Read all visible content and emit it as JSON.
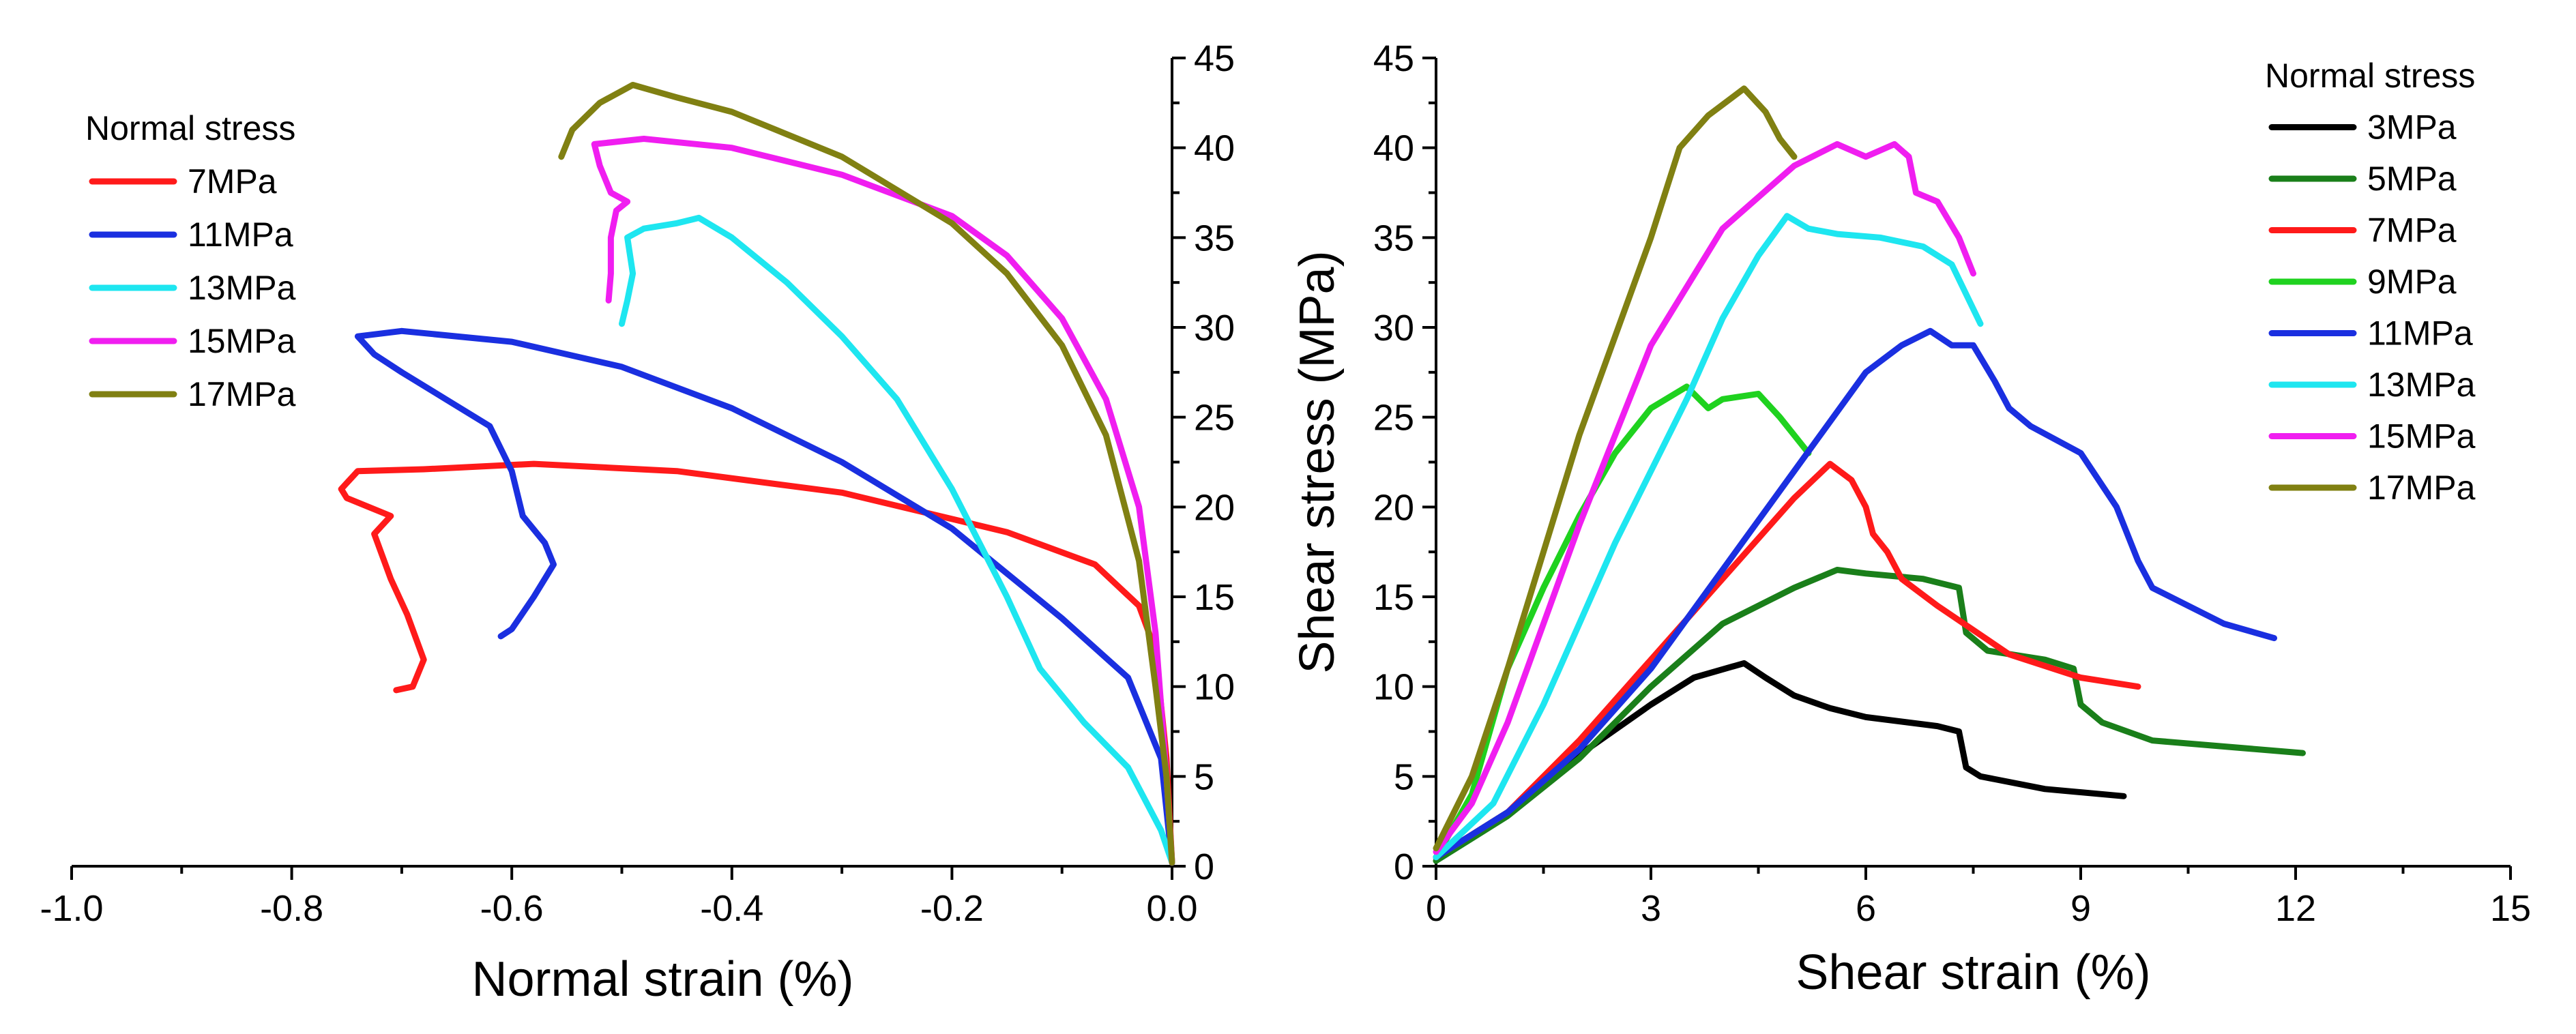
{
  "colors": {
    "3MPa": "#000000",
    "5MPa": "#1a7f1a",
    "7MPa": "#ff1a1a",
    "9MPa": "#1fd21f",
    "11MPa": "#1a2fe0",
    "13MPa": "#1ee6f0",
    "15MPa": "#f01ef0",
    "17MPa": "#808012"
  },
  "chart_data": [
    {
      "type": "line",
      "id": "left",
      "title": "",
      "xlabel": "Normal strain (%)",
      "ylabel": "",
      "xlim": [
        -1.0,
        0.0
      ],
      "ylim": [
        0,
        45
      ],
      "xticks": [
        -1.0,
        -0.8,
        -0.6,
        -0.4,
        -0.2,
        0.0
      ],
      "xtick_labels": [
        "-1.0",
        "-0.8",
        "-0.6",
        "-0.4",
        "-0.2",
        "0.0"
      ],
      "yticks": [
        0,
        5,
        10,
        15,
        20,
        25,
        30,
        35,
        40,
        45
      ],
      "ytick_labels": [
        "0",
        "5",
        "10",
        "15",
        "20",
        "25",
        "30",
        "35",
        "40",
        "45"
      ],
      "y_axis_side": "right",
      "grid": false,
      "legend": {
        "title": "Normal stress",
        "position": "top-left",
        "entries": [
          "7MPa",
          "11MPa",
          "13MPa",
          "15MPa",
          "17MPa"
        ]
      },
      "series": [
        {
          "name": "7MPa",
          "points": [
            [
              0.0,
              0.2
            ],
            [
              -0.005,
              6
            ],
            [
              -0.015,
              12
            ],
            [
              -0.03,
              14.5
            ],
            [
              -0.07,
              16.8
            ],
            [
              -0.15,
              18.6
            ],
            [
              -0.3,
              20.8
            ],
            [
              -0.45,
              22.0
            ],
            [
              -0.58,
              22.4
            ],
            [
              -0.68,
              22.1
            ],
            [
              -0.74,
              22.0
            ],
            [
              -0.755,
              21.0
            ],
            [
              -0.75,
              20.5
            ],
            [
              -0.73,
              20.0
            ],
            [
              -0.71,
              19.5
            ],
            [
              -0.725,
              18.5
            ],
            [
              -0.71,
              16.0
            ],
            [
              -0.695,
              14.0
            ],
            [
              -0.68,
              11.5
            ],
            [
              -0.69,
              10.0
            ],
            [
              -0.705,
              9.8
            ]
          ]
        },
        {
          "name": "11MPa",
          "points": [
            [
              0.0,
              0.2
            ],
            [
              -0.01,
              6
            ],
            [
              -0.04,
              10.5
            ],
            [
              -0.1,
              13.8
            ],
            [
              -0.15,
              16.3
            ],
            [
              -0.2,
              18.8
            ],
            [
              -0.3,
              22.5
            ],
            [
              -0.4,
              25.5
            ],
            [
              -0.5,
              27.8
            ],
            [
              -0.6,
              29.2
            ],
            [
              -0.7,
              29.8
            ],
            [
              -0.74,
              29.5
            ],
            [
              -0.725,
              28.5
            ],
            [
              -0.7,
              27.5
            ],
            [
              -0.66,
              26.0
            ],
            [
              -0.62,
              24.5
            ],
            [
              -0.6,
              22.0
            ],
            [
              -0.59,
              19.5
            ],
            [
              -0.57,
              18.0
            ],
            [
              -0.562,
              16.8
            ],
            [
              -0.58,
              15.0
            ],
            [
              -0.6,
              13.2
            ],
            [
              -0.61,
              12.8
            ]
          ]
        },
        {
          "name": "13MPa",
          "points": [
            [
              0.0,
              0.2
            ],
            [
              -0.01,
              2
            ],
            [
              -0.04,
              5.5
            ],
            [
              -0.08,
              8.0
            ],
            [
              -0.12,
              11.0
            ],
            [
              -0.15,
              15.0
            ],
            [
              -0.2,
              21.0
            ],
            [
              -0.25,
              26.0
            ],
            [
              -0.3,
              29.5
            ],
            [
              -0.35,
              32.5
            ],
            [
              -0.4,
              35.0
            ],
            [
              -0.43,
              36.1
            ],
            [
              -0.45,
              35.8
            ],
            [
              -0.48,
              35.5
            ],
            [
              -0.495,
              35.0
            ],
            [
              -0.49,
              33.0
            ],
            [
              -0.495,
              31.5
            ],
            [
              -0.5,
              30.2
            ]
          ]
        },
        {
          "name": "15MPa",
          "points": [
            [
              0.0,
              0.2
            ],
            [
              -0.005,
              5
            ],
            [
              -0.015,
              13
            ],
            [
              -0.03,
              20
            ],
            [
              -0.06,
              26
            ],
            [
              -0.1,
              30.5
            ],
            [
              -0.15,
              34
            ],
            [
              -0.2,
              36.2
            ],
            [
              -0.3,
              38.5
            ],
            [
              -0.4,
              40.0
            ],
            [
              -0.48,
              40.5
            ],
            [
              -0.525,
              40.2
            ],
            [
              -0.52,
              39.0
            ],
            [
              -0.51,
              37.5
            ],
            [
              -0.495,
              37.0
            ],
            [
              -0.505,
              36.5
            ],
            [
              -0.51,
              35.0
            ],
            [
              -0.51,
              33.0
            ],
            [
              -0.512,
              31.5
            ]
          ]
        },
        {
          "name": "17MPa",
          "points": [
            [
              0.0,
              0.2
            ],
            [
              -0.005,
              5
            ],
            [
              -0.015,
              10
            ],
            [
              -0.03,
              17
            ],
            [
              -0.06,
              24
            ],
            [
              -0.1,
              29
            ],
            [
              -0.15,
              33
            ],
            [
              -0.2,
              35.8
            ],
            [
              -0.3,
              39.5
            ],
            [
              -0.4,
              42.0
            ],
            [
              -0.45,
              42.8
            ],
            [
              -0.49,
              43.5
            ],
            [
              -0.52,
              42.5
            ],
            [
              -0.545,
              41.0
            ],
            [
              -0.555,
              39.5
            ]
          ]
        }
      ]
    },
    {
      "type": "line",
      "id": "right",
      "title": "",
      "xlabel": "Shear strain (%)",
      "ylabel": "Shear stress (MPa)",
      "xlim": [
        0,
        15
      ],
      "ylim": [
        0,
        45
      ],
      "xticks": [
        0,
        3,
        6,
        9,
        12,
        15
      ],
      "xtick_labels": [
        "0",
        "3",
        "6",
        "9",
        "12",
        "15"
      ],
      "yticks": [
        0,
        5,
        10,
        15,
        20,
        25,
        30,
        35,
        40,
        45
      ],
      "ytick_labels": [
        "0",
        "5",
        "10",
        "15",
        "20",
        "25",
        "30",
        "35",
        "40",
        "45"
      ],
      "y_axis_side": "left",
      "grid": false,
      "legend": {
        "title": "Normal stress",
        "position": "top-right",
        "entries": [
          "3MPa",
          "5MPa",
          "7MPa",
          "9MPa",
          "11MPa",
          "13MPa",
          "15MPa",
          "17MPa"
        ]
      },
      "series": [
        {
          "name": "3MPa",
          "points": [
            [
              0.0,
              0.5
            ],
            [
              1.0,
              3.0
            ],
            [
              2.0,
              6.2
            ],
            [
              3.0,
              9.0
            ],
            [
              3.6,
              10.5
            ],
            [
              4.3,
              11.3
            ],
            [
              4.6,
              10.5
            ],
            [
              5.0,
              9.5
            ],
            [
              5.5,
              8.8
            ],
            [
              6.0,
              8.3
            ],
            [
              7.0,
              7.8
            ],
            [
              7.3,
              7.5
            ],
            [
              7.4,
              5.5
            ],
            [
              7.6,
              5.0
            ],
            [
              8.5,
              4.3
            ],
            [
              9.6,
              3.9
            ]
          ]
        },
        {
          "name": "5MPa",
          "points": [
            [
              0.0,
              0.3
            ],
            [
              1.0,
              2.8
            ],
            [
              2.0,
              6.0
            ],
            [
              3.0,
              10.0
            ],
            [
              4.0,
              13.5
            ],
            [
              5.0,
              15.5
            ],
            [
              5.6,
              16.5
            ],
            [
              6.0,
              16.3
            ],
            [
              6.8,
              16.0
            ],
            [
              7.3,
              15.5
            ],
            [
              7.4,
              13.0
            ],
            [
              7.7,
              12.0
            ],
            [
              8.5,
              11.5
            ],
            [
              8.9,
              11.0
            ],
            [
              9.0,
              9.0
            ],
            [
              9.3,
              8.0
            ],
            [
              10.0,
              7.0
            ],
            [
              12.1,
              6.3
            ]
          ]
        },
        {
          "name": "7MPa",
          "points": [
            [
              0.0,
              0.5
            ],
            [
              1.0,
              3.0
            ],
            [
              2.0,
              7.0
            ],
            [
              3.0,
              11.5
            ],
            [
              4.0,
              16.0
            ],
            [
              5.0,
              20.5
            ],
            [
              5.5,
              22.4
            ],
            [
              5.8,
              21.5
            ],
            [
              6.0,
              20.0
            ],
            [
              6.1,
              18.5
            ],
            [
              6.3,
              17.5
            ],
            [
              6.5,
              16.0
            ],
            [
              7.0,
              14.5
            ],
            [
              8.0,
              11.8
            ],
            [
              9.0,
              10.5
            ],
            [
              9.8,
              10.0
            ]
          ]
        },
        {
          "name": "9MPa",
          "points": [
            [
              0.0,
              0.5
            ],
            [
              0.5,
              4.0
            ],
            [
              1.0,
              11.0
            ],
            [
              1.5,
              15.5
            ],
            [
              2.0,
              19.5
            ],
            [
              2.5,
              23.0
            ],
            [
              3.0,
              25.5
            ],
            [
              3.5,
              26.7
            ],
            [
              3.8,
              25.5
            ],
            [
              4.0,
              26.0
            ],
            [
              4.5,
              26.3
            ],
            [
              4.8,
              25.0
            ],
            [
              5.2,
              23.0
            ]
          ]
        },
        {
          "name": "11MPa",
          "points": [
            [
              0.0,
              0.5
            ],
            [
              1.0,
              3.0
            ],
            [
              2.0,
              6.5
            ],
            [
              3.0,
              11.0
            ],
            [
              4.0,
              16.5
            ],
            [
              5.0,
              22.0
            ],
            [
              6.0,
              27.5
            ],
            [
              6.5,
              29.0
            ],
            [
              6.9,
              29.8
            ],
            [
              7.2,
              29.0
            ],
            [
              7.5,
              29.0
            ],
            [
              7.8,
              27.0
            ],
            [
              8.0,
              25.5
            ],
            [
              8.3,
              24.5
            ],
            [
              9.0,
              23.0
            ],
            [
              9.5,
              20.0
            ],
            [
              9.8,
              17.0
            ],
            [
              10.0,
              15.5
            ],
            [
              11.0,
              13.5
            ],
            [
              11.7,
              12.7
            ]
          ]
        },
        {
          "name": "13MPa",
          "points": [
            [
              0.0,
              0.5
            ],
            [
              0.8,
              3.5
            ],
            [
              1.5,
              9.0
            ],
            [
              2.5,
              18.0
            ],
            [
              3.5,
              26.0
            ],
            [
              4.0,
              30.5
            ],
            [
              4.5,
              34.0
            ],
            [
              4.9,
              36.2
            ],
            [
              5.2,
              35.5
            ],
            [
              5.6,
              35.2
            ],
            [
              6.2,
              35.0
            ],
            [
              6.8,
              34.5
            ],
            [
              7.2,
              33.5
            ],
            [
              7.6,
              30.2
            ]
          ]
        },
        {
          "name": "15MPa",
          "points": [
            [
              0.0,
              0.8
            ],
            [
              0.5,
              3.5
            ],
            [
              1.0,
              8.0
            ],
            [
              2.0,
              19.0
            ],
            [
              3.0,
              29.0
            ],
            [
              4.0,
              35.5
            ],
            [
              5.0,
              39.0
            ],
            [
              5.6,
              40.2
            ],
            [
              6.0,
              39.5
            ],
            [
              6.4,
              40.2
            ],
            [
              6.6,
              39.5
            ],
            [
              6.7,
              37.5
            ],
            [
              7.0,
              37.0
            ],
            [
              7.3,
              35.0
            ],
            [
              7.5,
              33.0
            ]
          ]
        },
        {
          "name": "17MPa",
          "points": [
            [
              0.0,
              1.0
            ],
            [
              0.5,
              5.0
            ],
            [
              1.0,
              11.0
            ],
            [
              2.0,
              24.0
            ],
            [
              3.0,
              35.0
            ],
            [
              3.4,
              40.0
            ],
            [
              3.8,
              41.8
            ],
            [
              4.3,
              43.3
            ],
            [
              4.6,
              42.0
            ],
            [
              4.8,
              40.5
            ],
            [
              5.0,
              39.5
            ]
          ]
        }
      ]
    }
  ]
}
